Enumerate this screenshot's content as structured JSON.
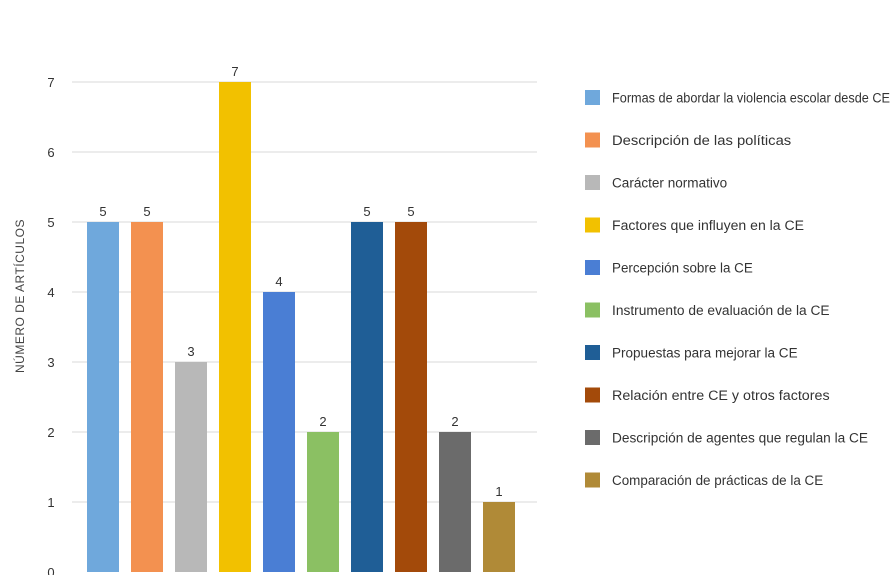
{
  "chart_data": {
    "type": "bar",
    "title": "",
    "xlabel": "",
    "ylabel": "NÚMERO DE ARTÍCULOS",
    "ylim": [
      0,
      7
    ],
    "yticks": [
      "0",
      "1",
      "2",
      "3",
      "4",
      "5",
      "6",
      "7"
    ],
    "grid": true,
    "legend_position": "right",
    "categories": [
      "Formas de abordar la violencia escolar desde CE",
      "Descripción de las políticas",
      "Carácter normativo",
      "Factores que influyen en la CE",
      "Percepción sobre la CE",
      "Instrumento de evaluación de la CE",
      "Propuestas para mejorar la CE",
      "Relación entre CE y otros factores",
      "Descripción de agentes que regulan la CE",
      "Comparación de prácticas de la CE"
    ],
    "values": [
      5,
      5,
      3,
      7,
      4,
      2,
      5,
      5,
      2,
      1
    ],
    "colors": [
      "#6fa8dc",
      "#f39150",
      "#b8b8b8",
      "#f2c100",
      "#4a7ed4",
      "#8bc063",
      "#1f5e96",
      "#a34a0a",
      "#6b6b6b",
      "#b08a37"
    ]
  }
}
